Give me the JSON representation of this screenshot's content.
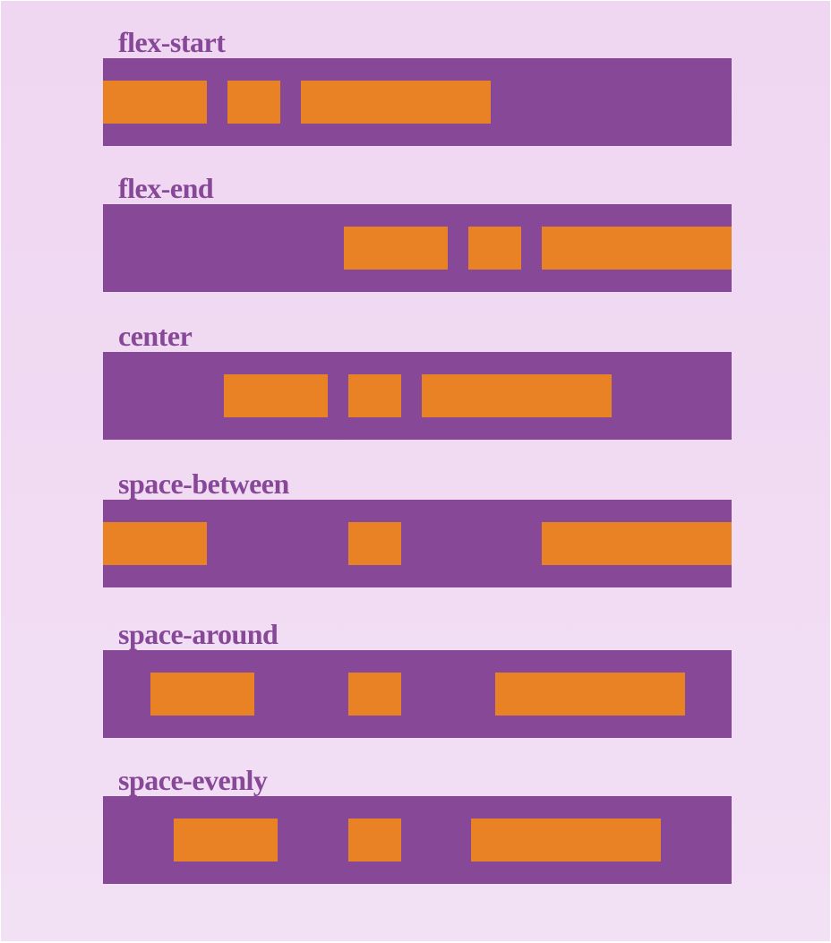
{
  "colors": {
    "background": "#efd6f1",
    "container": "#874898",
    "item": "#e88225",
    "label": "#874898"
  },
  "sections": [
    {
      "label": "flex-start",
      "justify": "flex-start"
    },
    {
      "label": "flex-end",
      "justify": "flex-end"
    },
    {
      "label": "center",
      "justify": "center"
    },
    {
      "label": "space-between",
      "justify": "space-between"
    },
    {
      "label": "space-around",
      "justify": "space-around"
    },
    {
      "label": "space-evenly",
      "justify": "space-evenly"
    }
  ]
}
